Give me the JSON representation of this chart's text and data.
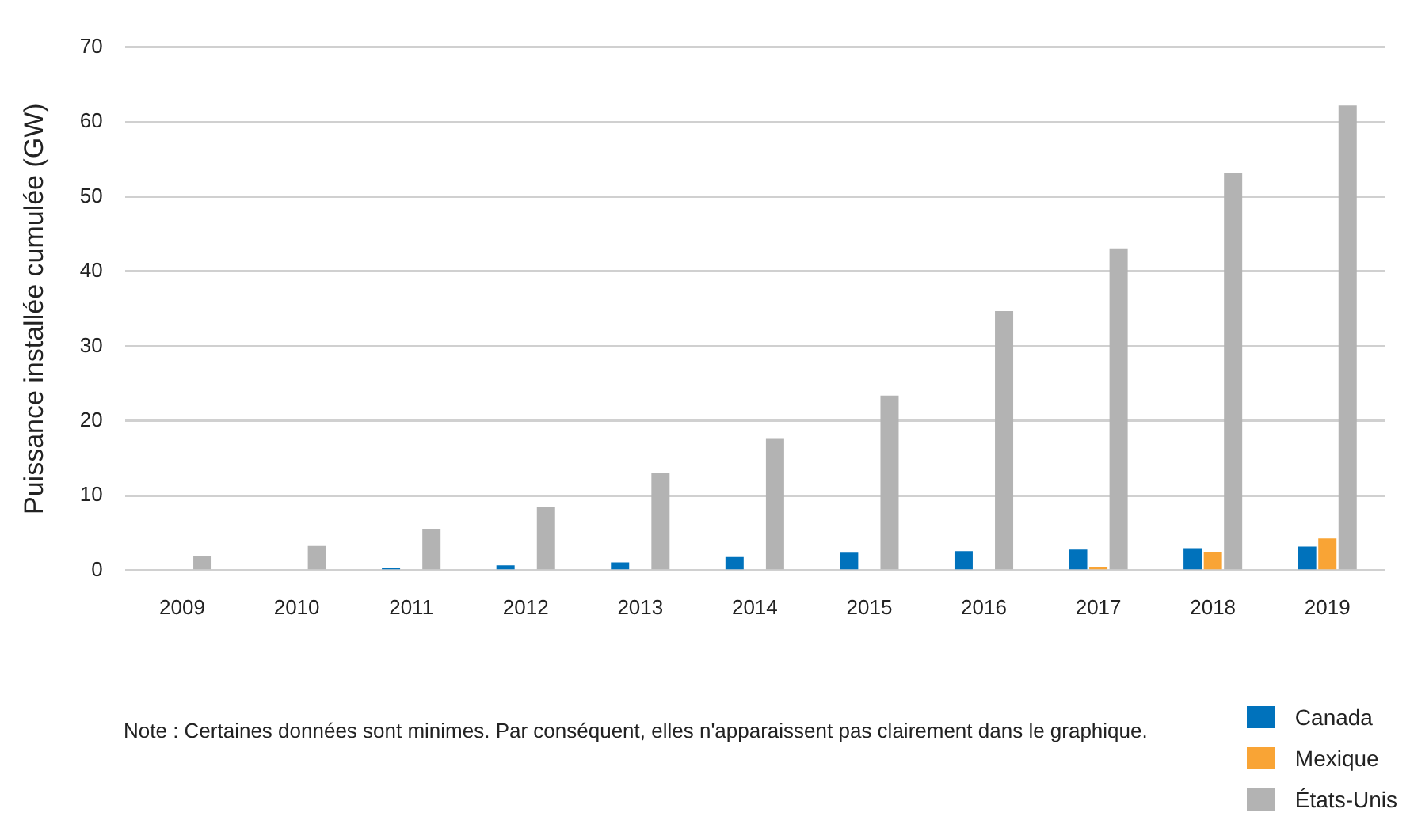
{
  "chart_data": {
    "type": "bar",
    "ylabel": "Puissance installée cumulée (GW)",
    "categories": [
      "2009",
      "2010",
      "2011",
      "2012",
      "2013",
      "2014",
      "2015",
      "2016",
      "2017",
      "2018",
      "2019"
    ],
    "series": [
      {
        "name": "Canada",
        "color": "#0072bc",
        "values": [
          0,
          0,
          0.4,
          0.7,
          1.1,
          1.8,
          2.4,
          2.6,
          2.8,
          3.0,
          3.2
        ]
      },
      {
        "name": "Mexique",
        "color": "#f9a435",
        "values": [
          0,
          0,
          0,
          0,
          0,
          0,
          0,
          null,
          0.5,
          2.5,
          4.3
        ]
      },
      {
        "name": "États-Unis",
        "color": "#b3b3b3",
        "values": [
          2.0,
          3.3,
          5.6,
          8.5,
          13.0,
          17.6,
          23.4,
          34.7,
          43.1,
          53.2,
          62.2
        ]
      }
    ],
    "ylim": [
      0,
      70
    ],
    "yticks": [
      0,
      10,
      20,
      30,
      40,
      50,
      60,
      70
    ],
    "grid": "y",
    "legend": "bottom right",
    "annotations": [
      "Note : Certaines données sont minimes. Par conséquent, elles n'apparaissent pas clairement dans le graphique."
    ]
  }
}
